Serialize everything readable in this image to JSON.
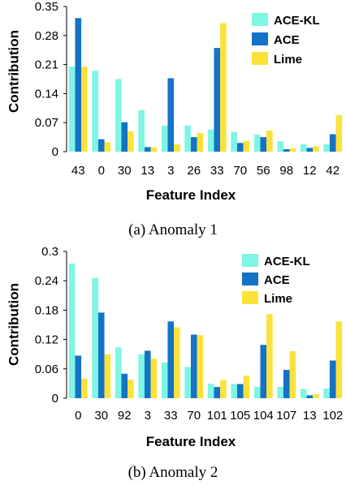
{
  "chart_data": [
    {
      "type": "bar",
      "caption": "(a) Anomaly 1",
      "xlabel": "Feature Index",
      "ylabel": "Contribution",
      "ylim": [
        0,
        0.35
      ],
      "yticks": [
        "0",
        "0.07",
        "0.14",
        "0.21",
        "0.28",
        "0.35"
      ],
      "ytick_values": [
        0,
        0.07,
        0.14,
        0.21,
        0.28,
        0.35
      ],
      "categories": [
        "43",
        "0",
        "30",
        "13",
        "3",
        "26",
        "33",
        "70",
        "56",
        "98",
        "12",
        "42"
      ],
      "legend_position": "top-right",
      "series": [
        {
          "name": "ACE-KL",
          "color": "#7ff5e4",
          "values": [
            0.205,
            0.195,
            0.175,
            0.1,
            0.063,
            0.063,
            0.053,
            0.047,
            0.041,
            0.025,
            0.018,
            0.018
          ]
        },
        {
          "name": "ACE",
          "color": "#1473c6",
          "values": [
            0.322,
            0.03,
            0.071,
            0.011,
            0.177,
            0.035,
            0.25,
            0.021,
            0.035,
            0.006,
            0.009,
            0.042
          ]
        },
        {
          "name": "Lime",
          "color": "#fbe23b",
          "values": [
            0.205,
            0.023,
            0.049,
            0.011,
            0.018,
            0.045,
            0.31,
            0.026,
            0.051,
            0.008,
            0.013,
            0.088
          ]
        }
      ]
    },
    {
      "type": "bar",
      "caption": "(b) Anomaly 2",
      "xlabel": "Feature Index",
      "ylabel": "Contribution",
      "ylim": [
        0,
        0.3
      ],
      "yticks": [
        "0",
        "0.06",
        "0.12",
        "0.18",
        "0.24",
        "0.3"
      ],
      "ytick_values": [
        0,
        0.06,
        0.12,
        0.18,
        0.24,
        0.3
      ],
      "categories": [
        "0",
        "30",
        "92",
        "3",
        "33",
        "70",
        "101",
        "105",
        "104",
        "107",
        "13",
        "102"
      ],
      "legend_position": "top-right",
      "series": [
        {
          "name": "ACE-KL",
          "color": "#7ff5e4",
          "values": [
            0.275,
            0.246,
            0.104,
            0.09,
            0.073,
            0.064,
            0.03,
            0.029,
            0.023,
            0.023,
            0.019,
            0.02
          ]
        },
        {
          "name": "ACE",
          "color": "#1473c6",
          "values": [
            0.087,
            0.175,
            0.05,
            0.097,
            0.157,
            0.13,
            0.023,
            0.029,
            0.109,
            0.058,
            0.006,
            0.077
          ]
        },
        {
          "name": "Lime",
          "color": "#fbe23b",
          "values": [
            0.04,
            0.09,
            0.038,
            0.081,
            0.145,
            0.129,
            0.037,
            0.046,
            0.172,
            0.096,
            0.008,
            0.157
          ]
        }
      ]
    }
  ]
}
